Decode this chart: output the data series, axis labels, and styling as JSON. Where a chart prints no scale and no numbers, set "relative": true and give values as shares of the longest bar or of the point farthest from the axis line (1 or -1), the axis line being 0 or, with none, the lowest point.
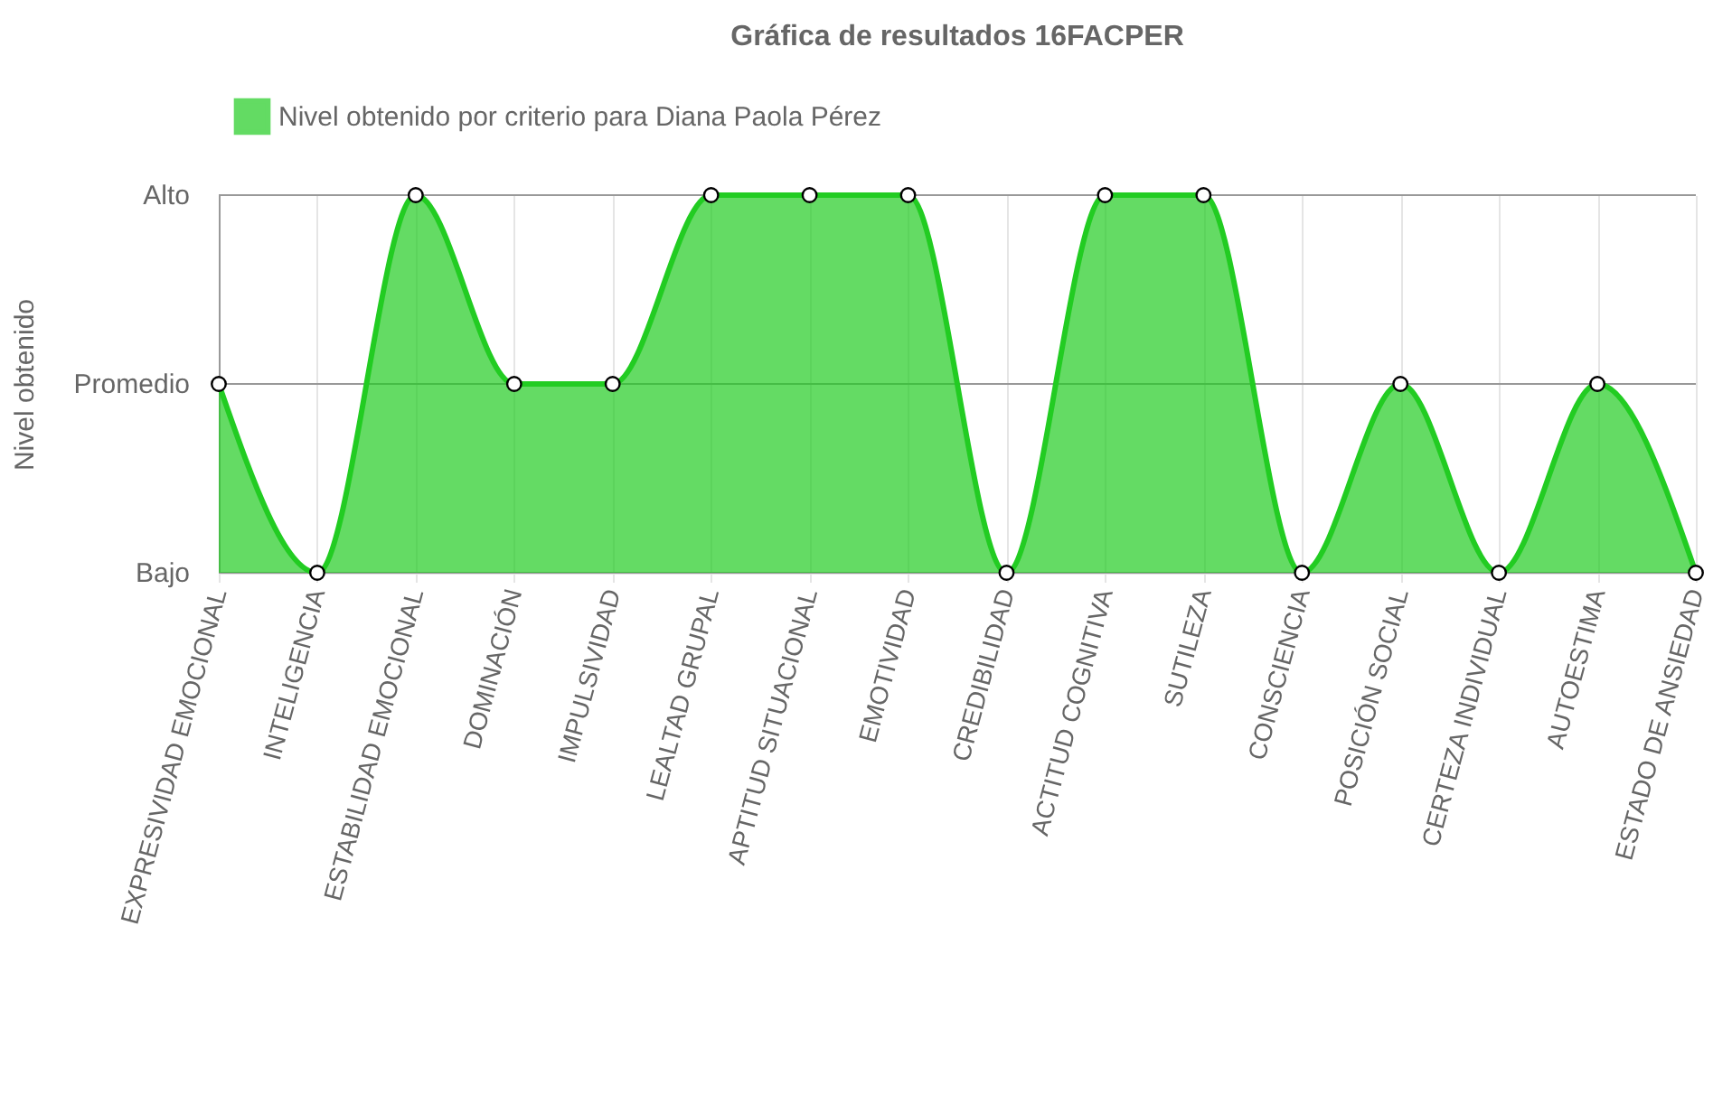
{
  "chart_data": {
    "type": "area",
    "title": "Gráfica de resultados 16FACPER",
    "ylabel": "Nivel obtenido",
    "categories": [
      "EXPRESIVIDAD EMOCIONAL",
      "INTELIGENCIA",
      "ESTABILIDAD EMOCIONAL",
      "DOMINACIÓN",
      "IMPULSIVIDAD",
      "LEALTAD GRUPAL",
      "APTITUD SITUACIONAL",
      "EMOTIVIDAD",
      "CREDIBILIDAD",
      "ACTITUD COGNITIVA",
      "SUTILEZA",
      "CONSCIENCIA",
      "POSICIÓN SOCIAL",
      "CERTEZA INDIVIDUAL",
      "AUTOESTIMA",
      "ESTADO DE ANSIEDAD"
    ],
    "series": [
      {
        "name": "Nivel obtenido por criterio para Diana Paola Pérez",
        "color": "#22cc22",
        "values": [
          0.5,
          0,
          1,
          0.5,
          0.5,
          1,
          1,
          1,
          0,
          1,
          1,
          0,
          0.5,
          0,
          0.5,
          0
        ]
      }
    ],
    "relative": true,
    "ref_lines": [
      {
        "axis": "y",
        "value": 0,
        "label": "Bajo",
        "color": "#999999"
      },
      {
        "axis": "y",
        "value": 0.5,
        "label": "Promedio",
        "color": "#999999"
      },
      {
        "axis": "y",
        "value": 1,
        "label": "Alto",
        "color": "#999999"
      }
    ],
    "grid": "x",
    "legend": "top",
    "marker": "circle"
  }
}
